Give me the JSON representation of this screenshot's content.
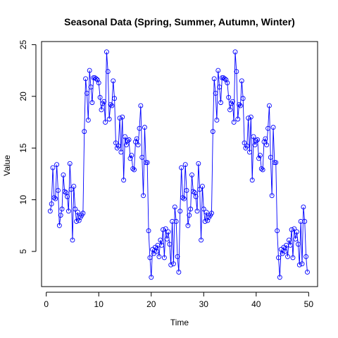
{
  "chart_data": {
    "type": "line",
    "title": "Seasonal Data (Spring, Summer, Autumn, Winter)",
    "xlabel": "Time",
    "ylabel": "Value",
    "xlim": [
      -0.9,
      51.7
    ],
    "ylim": [
      1.6,
      25.3
    ],
    "xticks": [
      0,
      10,
      20,
      30,
      40,
      50
    ],
    "yticks": [
      5,
      10,
      15,
      20,
      25
    ],
    "line_color": "#0000ff",
    "marker": "open-circle",
    "x_step": 0.25,
    "x_start": 0.75,
    "values": [
      8.9,
      9.6,
      13.1,
      10.2,
      10.1,
      13.4,
      10.9,
      7.5,
      8.5,
      9.1,
      12.4,
      10.8,
      10.7,
      10.3,
      8.9,
      13.5,
      11.0,
      6.1,
      11.3,
      9.1,
      7.9,
      8.8,
      8.0,
      8.3,
      8.5,
      8.7,
      16.6,
      21.7,
      20.3,
      17.7,
      22.5,
      20.9,
      19.4,
      21.8,
      21.8,
      21.7,
      21.6,
      21.3,
      19.9,
      18.7,
      19.3,
      19.5,
      17.5,
      24.3,
      22.4,
      17.8,
      19.2,
      19.1,
      21.5,
      19.8,
      15.5,
      15.0,
      15.2,
      17.9,
      14.6,
      18.0,
      11.9,
      16.1,
      15.3,
      15.7,
      15.8,
      14.0,
      14.3,
      13.0,
      12.9,
      15.6,
      15.9,
      15.3,
      16.9,
      19.1,
      14.1,
      10.4,
      17.0,
      13.6,
      13.6,
      7.0,
      4.4,
      2.5,
      5.2,
      4.8,
      5.4,
      5.0,
      5.6,
      4.5,
      6.1,
      5.6,
      7.1,
      4.4,
      7.2,
      6.2,
      6.9,
      5.7,
      3.7,
      7.9,
      3.8,
      9.3,
      7.9,
      4.5,
      3.0,
      8.9,
      13.1,
      10.2,
      10.1,
      13.4,
      10.9,
      7.5,
      8.5,
      9.1,
      12.4,
      10.8,
      10.7,
      10.3,
      8.9,
      13.5,
      11.0,
      6.1,
      11.3,
      9.1,
      7.9,
      8.8,
      8.0,
      8.3,
      8.5,
      8.7,
      16.6,
      21.7,
      20.3,
      17.7,
      22.5,
      20.9,
      19.4,
      21.8,
      21.8,
      21.7,
      21.6,
      21.3,
      19.9,
      18.7,
      19.3,
      19.5,
      17.5,
      24.3,
      22.4,
      17.8,
      19.2,
      19.1,
      21.5,
      19.8,
      15.5,
      15.0,
      15.2,
      17.9,
      14.6,
      18.0,
      11.9,
      16.1,
      15.3,
      15.7,
      15.8,
      14.0,
      14.3,
      13.0,
      12.9,
      15.6,
      15.9,
      15.3,
      16.9,
      19.1,
      14.1,
      10.4,
      17.0,
      13.6,
      13.6,
      7.0,
      4.4,
      2.5,
      5.2,
      4.8,
      5.4,
      5.0,
      5.6,
      4.5,
      6.1,
      5.6,
      7.1,
      4.4,
      7.2,
      6.2,
      6.9,
      5.7,
      3.7,
      7.9,
      3.8,
      9.3,
      7.9,
      4.5,
      3.0
    ]
  }
}
